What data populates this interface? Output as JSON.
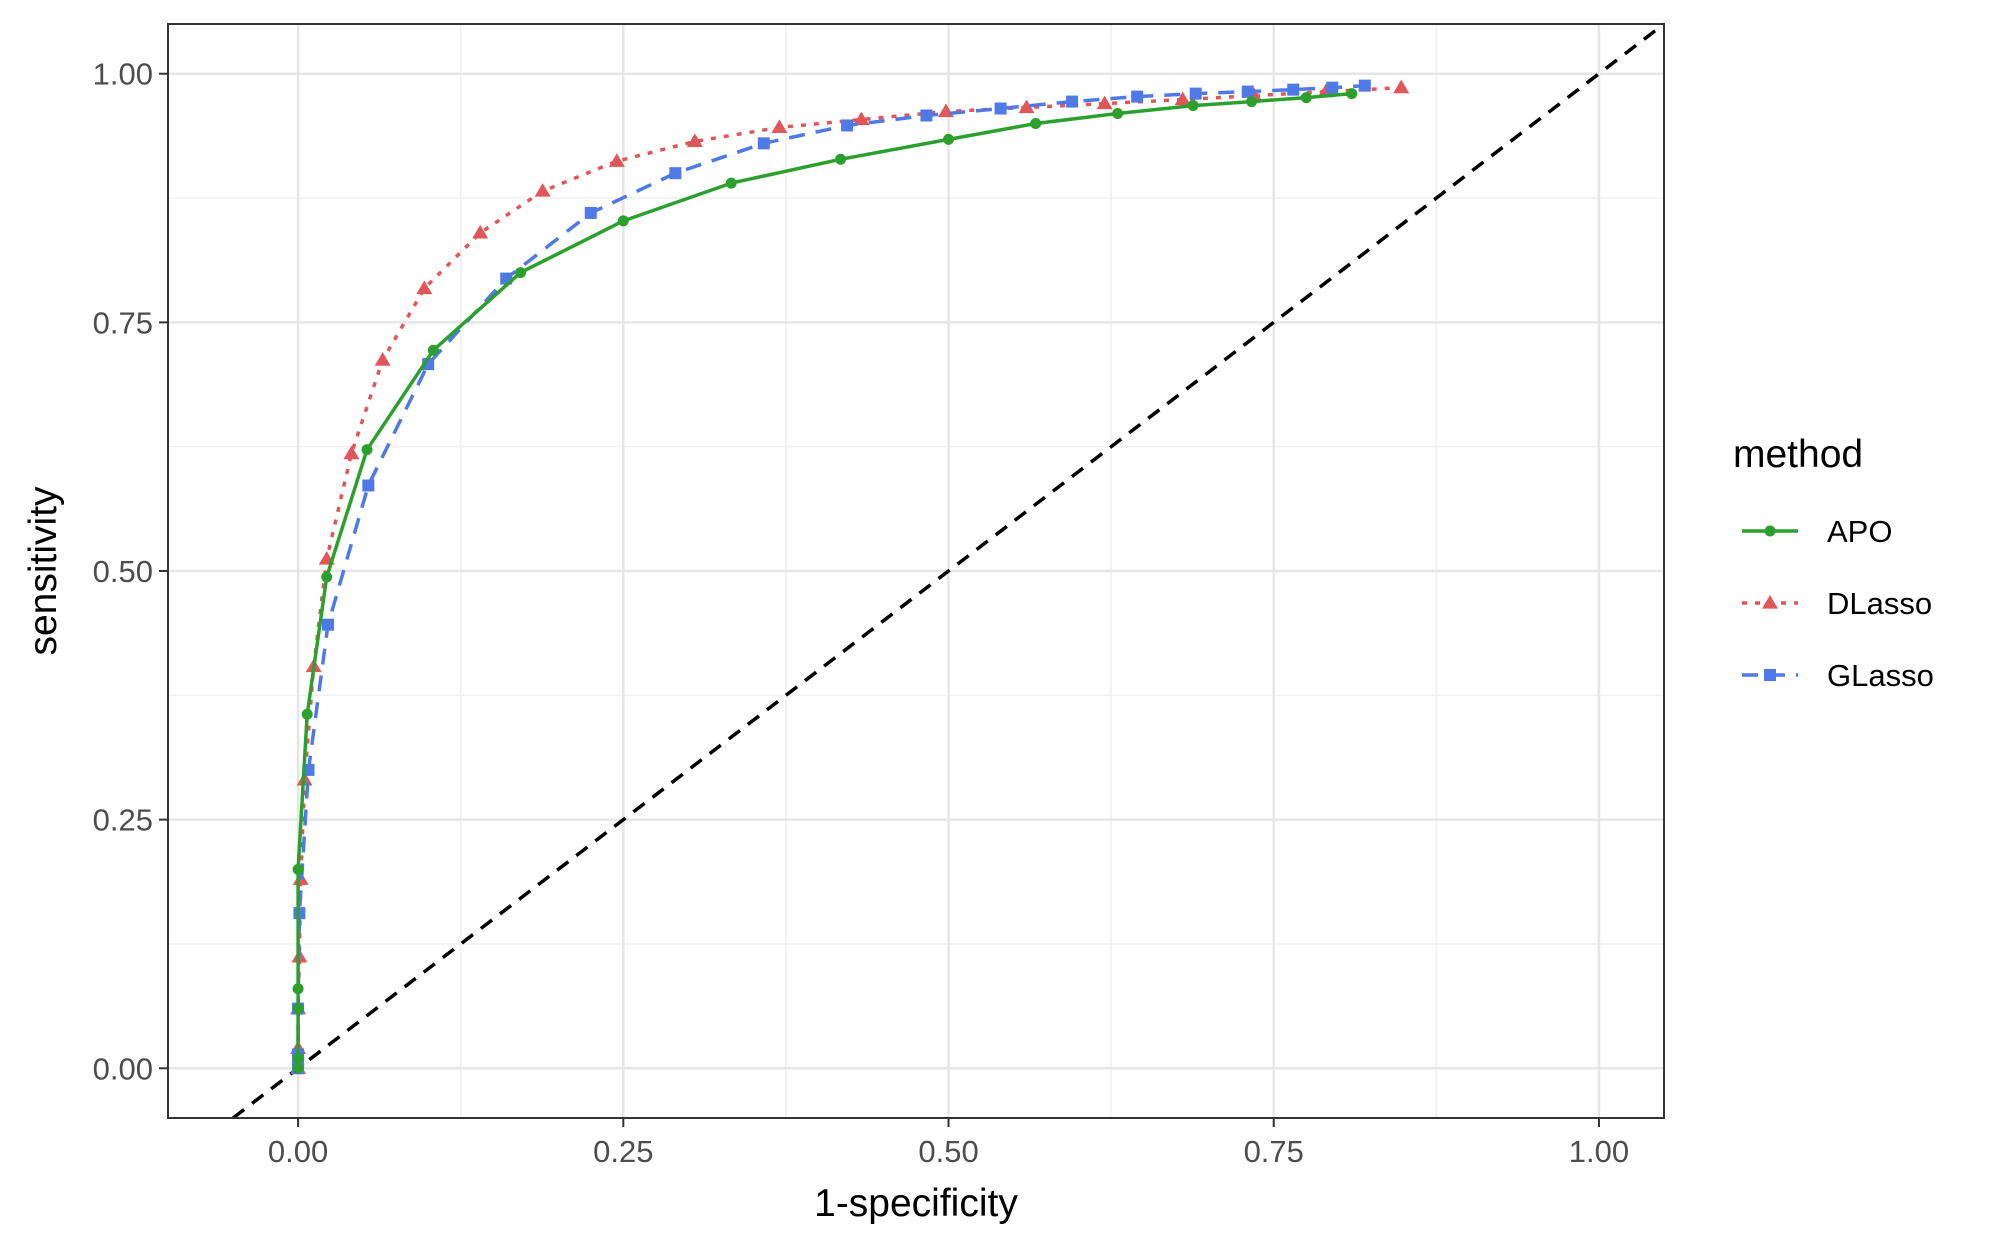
{
  "chart_data": {
    "type": "line",
    "title": "",
    "xlabel": "1-specificity",
    "ylabel": "sensitivity",
    "xlim": [
      -0.1,
      1.05
    ],
    "ylim": [
      -0.05,
      1.05
    ],
    "x_ticks": [
      "0.00",
      "0.25",
      "0.50",
      "0.75",
      "1.00"
    ],
    "y_ticks": [
      "0.00",
      "0.25",
      "0.50",
      "0.75",
      "1.00"
    ],
    "grid": true,
    "legend_title": "method",
    "legend_position": "right",
    "reference_line": {
      "from": [
        0,
        0
      ],
      "to": [
        1,
        1
      ],
      "style": "dashed",
      "color": "#000000"
    },
    "series": [
      {
        "name": "APO",
        "color": "#2ca02c",
        "line_style": "solid",
        "marker": "circle",
        "x": [
          0.0,
          0.0,
          0.0,
          0.0,
          0.0,
          0.007,
          0.022,
          0.053,
          0.104,
          0.171,
          0.25,
          0.333,
          0.417,
          0.5,
          0.567,
          0.63,
          0.688,
          0.733,
          0.775,
          0.81
        ],
        "y": [
          0.0,
          0.01,
          0.06,
          0.08,
          0.2,
          0.356,
          0.494,
          0.622,
          0.722,
          0.8,
          0.852,
          0.89,
          0.914,
          0.934,
          0.95,
          0.96,
          0.968,
          0.972,
          0.976,
          0.98
        ]
      },
      {
        "name": "DLasso",
        "color": "#e15759",
        "line_style": "dotted",
        "marker": "triangle",
        "x": [
          0.0,
          0.0,
          0.0,
          0.001,
          0.002,
          0.005,
          0.012,
          0.022,
          0.041,
          0.065,
          0.097,
          0.14,
          0.188,
          0.245,
          0.305,
          0.37,
          0.433,
          0.498,
          0.56,
          0.62,
          0.68,
          0.735,
          0.79,
          0.848
        ],
        "y": [
          0.0,
          0.02,
          0.06,
          0.112,
          0.19,
          0.29,
          0.404,
          0.512,
          0.618,
          0.712,
          0.784,
          0.84,
          0.882,
          0.912,
          0.932,
          0.946,
          0.954,
          0.962,
          0.966,
          0.97,
          0.974,
          0.978,
          0.982,
          0.986
        ]
      },
      {
        "name": "GLasso",
        "color": "#4e79e7",
        "line_style": "dashed",
        "marker": "square",
        "x": [
          0.0,
          0.0,
          0.0,
          0.0,
          0.001,
          0.008,
          0.023,
          0.054,
          0.1,
          0.16,
          0.225,
          0.29,
          0.358,
          0.422,
          0.483,
          0.54,
          0.595,
          0.645,
          0.69,
          0.73,
          0.765,
          0.795,
          0.82
        ],
        "y": [
          0.0,
          0.008,
          0.014,
          0.06,
          0.156,
          0.3,
          0.446,
          0.586,
          0.708,
          0.794,
          0.86,
          0.9,
          0.93,
          0.948,
          0.958,
          0.965,
          0.972,
          0.977,
          0.98,
          0.982,
          0.984,
          0.986,
          0.988
        ]
      }
    ]
  }
}
